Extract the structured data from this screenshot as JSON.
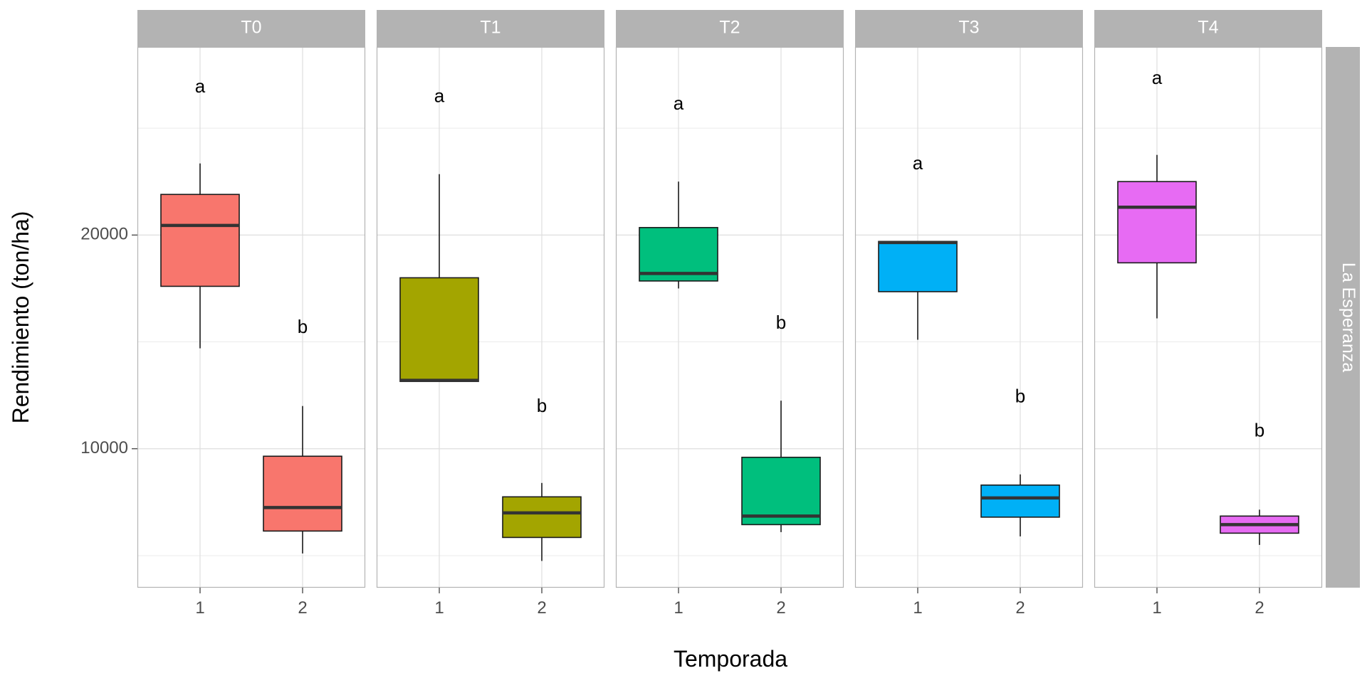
{
  "chart_data": {
    "type": "boxplot",
    "xlabel": "Temporada",
    "ylabel": "Rendimiento (ton/ha)",
    "row_facet": "La Esperanza",
    "x_categories": [
      "1",
      "2"
    ],
    "ylim": [
      3500,
      28800
    ],
    "y_ticks": [
      10000,
      20000
    ],
    "y_minor_ticks": [
      5000,
      15000,
      25000
    ],
    "grid": true,
    "panels": [
      {
        "name": "T0",
        "color": "#F8766D",
        "boxes": [
          {
            "x": "1",
            "min": 14700,
            "q1": 17600,
            "median": 20450,
            "q3": 21900,
            "max": 23350,
            "letter": "a",
            "letter_y": 26900
          },
          {
            "x": "2",
            "min": 5100,
            "q1": 6150,
            "median": 7250,
            "q3": 9650,
            "max": 12000,
            "letter": "b",
            "letter_y": 15650
          }
        ]
      },
      {
        "name": "T1",
        "color": "#A3A500",
        "boxes": [
          {
            "x": "1",
            "min": 13150,
            "q1": 13150,
            "median": 13200,
            "q3": 18000,
            "max": 22850,
            "letter": "a",
            "letter_y": 26450
          },
          {
            "x": "2",
            "min": 4750,
            "q1": 5850,
            "median": 7000,
            "q3": 7750,
            "max": 8400,
            "letter": "b",
            "letter_y": 11950
          }
        ]
      },
      {
        "name": "T2",
        "color": "#00BF7D",
        "boxes": [
          {
            "x": "1",
            "min": 17500,
            "q1": 17850,
            "median": 18200,
            "q3": 20350,
            "max": 22500,
            "letter": "a",
            "letter_y": 26100
          },
          {
            "x": "2",
            "min": 6100,
            "q1": 6450,
            "median": 6850,
            "q3": 9600,
            "max": 12250,
            "letter": "b",
            "letter_y": 15850
          }
        ]
      },
      {
        "name": "T3",
        "color": "#00B0F6",
        "boxes": [
          {
            "x": "1",
            "min": 15100,
            "q1": 17350,
            "median": 19650,
            "q3": 19700,
            "max": 19700,
            "letter": "a",
            "letter_y": 23300
          },
          {
            "x": "2",
            "min": 5900,
            "q1": 6800,
            "median": 7700,
            "q3": 8300,
            "max": 8800,
            "letter": "b",
            "letter_y": 12400
          }
        ]
      },
      {
        "name": "T4",
        "color": "#E76BF3",
        "boxes": [
          {
            "x": "1",
            "min": 16100,
            "q1": 18700,
            "median": 21300,
            "q3": 22500,
            "max": 23750,
            "letter": "a",
            "letter_y": 27300
          },
          {
            "x": "2",
            "min": 5500,
            "q1": 6050,
            "median": 6450,
            "q3": 6850,
            "max": 7150,
            "letter": "b",
            "letter_y": 10800
          }
        ]
      }
    ]
  }
}
